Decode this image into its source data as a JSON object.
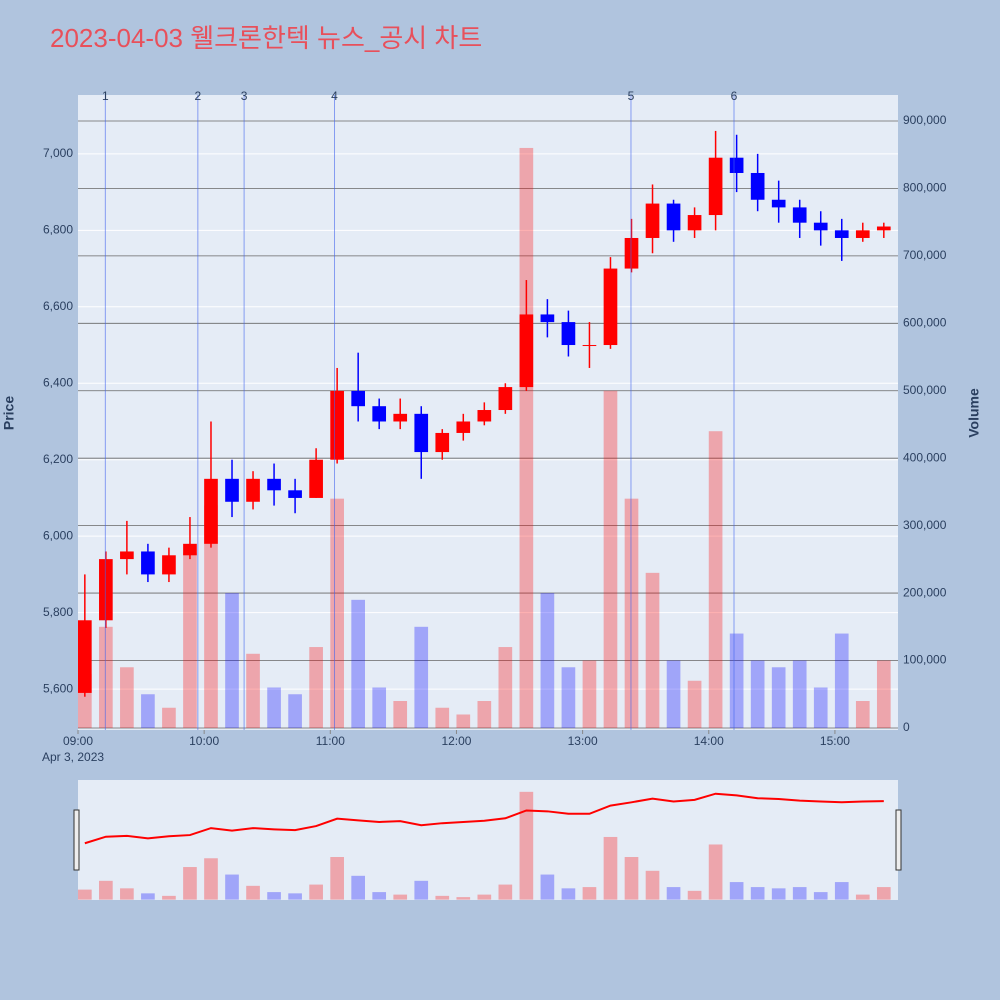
{
  "chart_data": {
    "type": "candlestick",
    "title": "2023-04-03 웰크론한텍 뉴스_공시 차트",
    "y_label": "Price",
    "y2_label": "Volume",
    "x_date_label": "Apr 3, 2023",
    "up_color": "#ff0000",
    "down_color": "#0000ff",
    "grid": true,
    "x": [
      "09:00",
      "09:10",
      "09:20",
      "09:30",
      "09:40",
      "09:50",
      "10:00",
      "10:10",
      "10:20",
      "10:30",
      "10:40",
      "10:50",
      "11:00",
      "11:10",
      "11:20",
      "11:30",
      "11:40",
      "11:50",
      "12:00",
      "12:10",
      "12:20",
      "12:30",
      "12:40",
      "12:50",
      "13:00",
      "13:10",
      "13:20",
      "13:30",
      "13:40",
      "13:50",
      "14:00",
      "14:10",
      "14:20",
      "14:30",
      "14:40",
      "14:50",
      "15:00",
      "15:10",
      "15:20"
    ],
    "open": [
      5590,
      5780,
      5940,
      5960,
      5900,
      5950,
      5980,
      6150,
      6090,
      6150,
      6120,
      6100,
      6200,
      6380,
      6340,
      6300,
      6320,
      6220,
      6270,
      6300,
      6330,
      6390,
      6580,
      6560,
      6500,
      6500,
      6700,
      6780,
      6870,
      6800,
      6840,
      6990,
      6950,
      6880,
      6860,
      6820,
      6800,
      6780,
      6800
    ],
    "high": [
      5900,
      5960,
      6040,
      5980,
      5970,
      6050,
      6300,
      6200,
      6170,
      6190,
      6150,
      6230,
      6440,
      6480,
      6360,
      6360,
      6340,
      6280,
      6320,
      6350,
      6400,
      6670,
      6620,
      6590,
      6560,
      6730,
      6830,
      6920,
      6880,
      6860,
      7060,
      7050,
      7000,
      6930,
      6880,
      6850,
      6830,
      6820,
      6820
    ],
    "low": [
      5580,
      5760,
      5900,
      5880,
      5880,
      5940,
      5970,
      6050,
      6070,
      6080,
      6060,
      6100,
      6190,
      6300,
      6280,
      6280,
      6150,
      6200,
      6250,
      6290,
      6320,
      6380,
      6520,
      6470,
      6440,
      6490,
      6690,
      6740,
      6770,
      6780,
      6800,
      6900,
      6850,
      6820,
      6780,
      6760,
      6720,
      6770,
      6780
    ],
    "close": [
      5780,
      5940,
      5960,
      5900,
      5950,
      5980,
      6150,
      6090,
      6150,
      6120,
      6100,
      6200,
      6380,
      6340,
      6300,
      6320,
      6220,
      6270,
      6300,
      6330,
      6390,
      6580,
      6560,
      6500,
      6500,
      6700,
      6780,
      6870,
      6800,
      6840,
      6990,
      6950,
      6880,
      6860,
      6820,
      6800,
      6780,
      6800,
      6810
    ],
    "volume": [
      80000,
      150000,
      90000,
      50000,
      30000,
      260000,
      330000,
      200000,
      110000,
      60000,
      50000,
      120000,
      340000,
      190000,
      60000,
      40000,
      150000,
      30000,
      20000,
      40000,
      120000,
      860000,
      200000,
      90000,
      100000,
      500000,
      340000,
      230000,
      100000,
      70000,
      440000,
      140000,
      100000,
      90000,
      100000,
      60000,
      140000,
      40000,
      100000
    ],
    "xlim": [
      "09:00",
      "15:30"
    ],
    "xticks": [
      "09:00",
      "10:00",
      "11:00",
      "12:00",
      "13:00",
      "14:00",
      "15:00"
    ],
    "ylim": [
      5493,
      7154
    ],
    "yticks": [
      {
        "value": 5600,
        "label": "5,600"
      },
      {
        "value": 5800,
        "label": "5,800"
      },
      {
        "value": 6000,
        "label": "6,000"
      },
      {
        "value": 6200,
        "label": "6,200"
      },
      {
        "value": 6400,
        "label": "6,400"
      },
      {
        "value": 6600,
        "label": "6,600"
      },
      {
        "value": 6800,
        "label": "6,800"
      },
      {
        "value": 7000,
        "label": "7,000"
      }
    ],
    "y2lim": [
      -3000,
      938500
    ],
    "y2ticks": [
      0,
      {
        "value": 100000,
        "label": "100,000"
      },
      {
        "value": 200000,
        "label": "200,000"
      },
      {
        "value": 300000,
        "label": "300,000"
      },
      {
        "value": 400000,
        "label": "400,000"
      },
      {
        "value": 500000,
        "label": "500,000"
      },
      {
        "value": 600000,
        "label": "600,000"
      },
      {
        "value": 700000,
        "label": "700,000"
      },
      {
        "value": 800000,
        "label": "800,000"
      },
      {
        "value": 900000,
        "label": "900,000"
      }
    ],
    "news": [
      {
        "label": "1",
        "x": "09:13"
      },
      {
        "label": "2",
        "x": "09:57"
      },
      {
        "label": "3",
        "x": "10:19"
      },
      {
        "label": "4",
        "x": "11:02"
      },
      {
        "label": "5",
        "x": "13:23"
      },
      {
        "label": "6",
        "x": "14:12"
      }
    ]
  }
}
